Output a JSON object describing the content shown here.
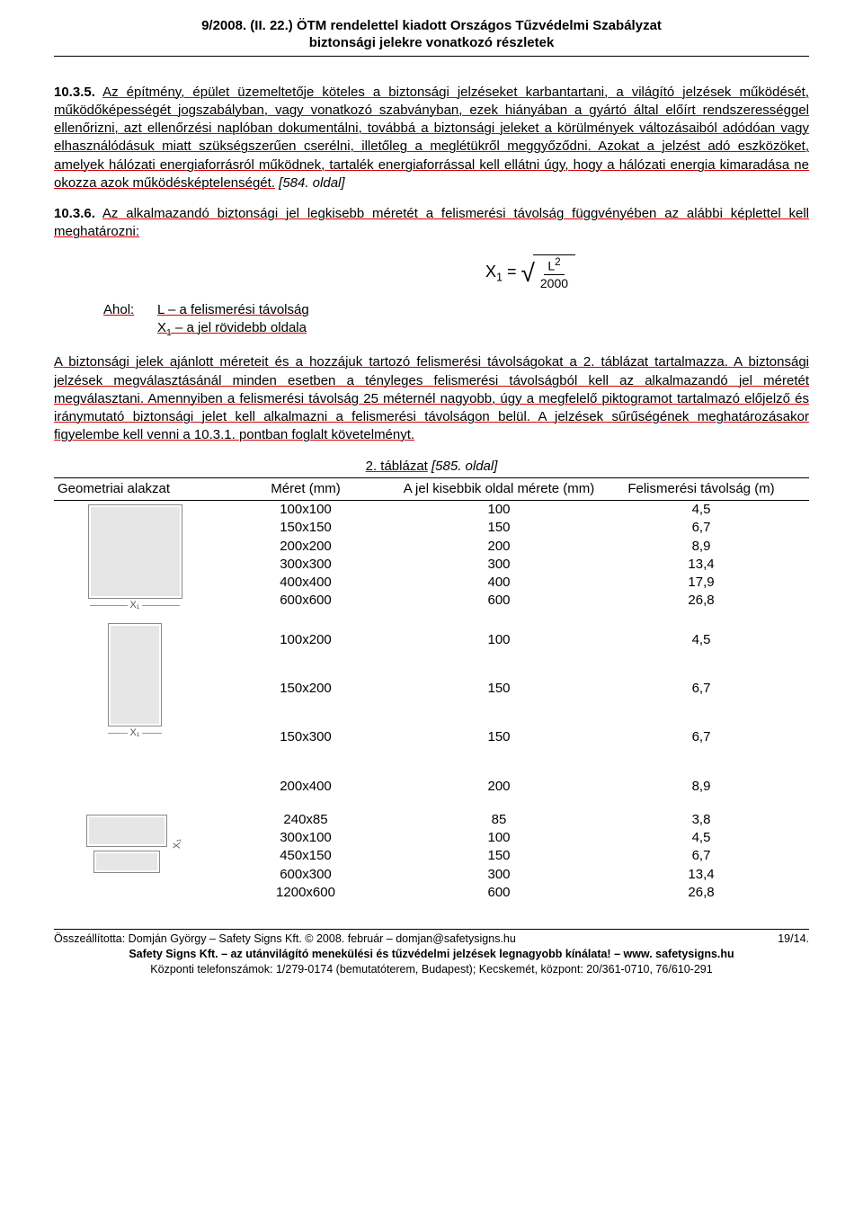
{
  "header": {
    "line1": "9/2008. (II. 22.) ÖTM rendelettel kiadott Országos Tűzvédelmi Szabályzat",
    "line2": "biztonsági jelekre vonatkozó részletek"
  },
  "para_10_3_5": {
    "num": "10.3.5.",
    "text": "Az építmény, épület üzemeltetője köteles a biztonsági jelzéseket karbantartani, a világító jelzések működését, működőképességét jogszabályban, vagy vonatkozó szabványban, ezek hiányában a gyártó által előírt rendszerességgel ellenőrizni, azt ellenőrzési naplóban dokumentálni, továbbá a biztonsági jeleket a körülmények változásaiból adódóan vagy elhasználódásuk miatt szükségszerűen cserélni, illetőleg a meglétükről meggyőződni. Azokat a jelzést adó eszközöket, amelyek hálózati energiaforrásról működnek, tartalék energiaforrással kell ellátni úgy, hogy a hálózati energia kimaradása ne okozza azok működésképtelenségét.",
    "ref": "[584. oldal]"
  },
  "para_10_3_6": {
    "num": "10.3.6.",
    "text": "Az alkalmazandó biztonsági jel legkisebb méretét a felismerési távolság függvényében az alábbi képlettel kell meghatározni:"
  },
  "formula": {
    "lhs_var": "X",
    "lhs_sub": "1",
    "eq": "=",
    "numerator_base": "L",
    "numerator_sup": "2",
    "denominator": "2000"
  },
  "defs": {
    "label": "Ahol:",
    "row1": "L – a felismerési távolság",
    "row2_a": "X",
    "row2_b": " – a jel rövidebb oldala",
    "row2_sub": "1"
  },
  "para_after_formula": "A biztonsági jelek ajánlott méreteit és a hozzájuk tartozó felismerési távolságokat a 2. táblázat tartalmazza. A biztonsági jelzések megválasztásánál minden esetben a tényleges felismerési távolságból kell az alkalmazandó jel méretét megválasztani. Amennyiben a felismerési távolság 25 méternél nagyobb, úgy a megfelelő piktogramot tartalmazó előjelző és iránymutató biztonsági jelet kell alkalmazni a felismerési távolságon belül. A jelzések sűrűségének meghatározásakor figyelembe kell venni a 10.3.1. pontban foglalt követelményt.",
  "table": {
    "caption_u": "2. táblázat",
    "caption_i": " [585. oldal]",
    "headers": {
      "shape": "Geometriai alakzat",
      "size": "Méret (mm)",
      "small": "A jel kisebbik oldal mérete (mm)",
      "dist": "Felismerési távolság (m)"
    },
    "dim_label": "X₁",
    "group1": [
      {
        "size": "100x100",
        "small": "100",
        "dist": "4,5"
      },
      {
        "size": "150x150",
        "small": "150",
        "dist": "6,7"
      },
      {
        "size": "200x200",
        "small": "200",
        "dist": "8,9"
      },
      {
        "size": "300x300",
        "small": "300",
        "dist": "13,4"
      },
      {
        "size": "400x400",
        "small": "400",
        "dist": "17,9"
      },
      {
        "size": "600x600",
        "small": "600",
        "dist": "26,8"
      }
    ],
    "group2": [
      {
        "size": "100x200",
        "small": "100",
        "dist": "4,5"
      },
      {
        "size": "150x200",
        "small": "150",
        "dist": "6,7"
      },
      {
        "size": "150x300",
        "small": "150",
        "dist": "6,7"
      },
      {
        "size": "200x400",
        "small": "200",
        "dist": "8,9"
      }
    ],
    "group3": [
      {
        "size": "240x85",
        "small": "85",
        "dist": "3,8"
      },
      {
        "size": "300x100",
        "small": "100",
        "dist": "4,5"
      },
      {
        "size": "450x150",
        "small": "150",
        "dist": "6,7"
      },
      {
        "size": "600x300",
        "small": "300",
        "dist": "13,4"
      },
      {
        "size": "1200x600",
        "small": "600",
        "dist": "26,8"
      }
    ]
  },
  "footer": {
    "left": "Összeállította: Domján György – Safety Signs Kft. © 2008. február – domjan@safetysigns.hu",
    "right": "19/14.",
    "bold": "Safety Signs Kft. – az utánvilágító menekülési és tűzvédelmi jelzések legnagyobb kínálata! – www. safetysigns.hu",
    "phone": "Központi telefonszámok: 1/279-0174 (bemutatóterem, Budapest); Kecskemét, központ: 20/361-0710, 76/610-291"
  }
}
